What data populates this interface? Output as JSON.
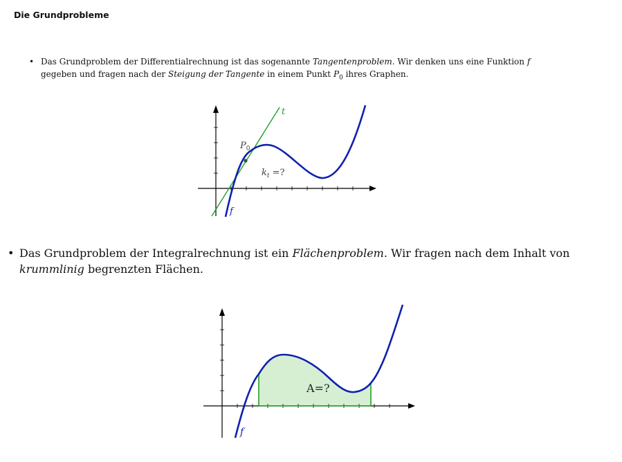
{
  "heading": "Die Grundprobleme",
  "bullet1": {
    "p1": "Das Grundproblem der Differentialrechnung ist das sogenannte ",
    "term1": "Tangentenproblem",
    "p2": ". Wir denken uns eine Funktion ",
    "f": "f",
    "p3": " gegeben und fragen nach der ",
    "term2": "Steigung der Tangente",
    "p4": " in einem Punkt ",
    "p0": "P",
    "p0_sub": "0",
    "p5": " ihres Graphen."
  },
  "bullet2": {
    "p1": "Das Grundproblem der Integralrechnung ist ein ",
    "term1": "Flächenproblem",
    "p2": ". Wir fragen nach dem Inhalt von ",
    "term2": "krummlinig",
    "p3": " begrenzten Flächen."
  },
  "figure1": {
    "tangent_label": "t",
    "point_label": "P",
    "point_sub": "0",
    "slope_label": "k",
    "slope_sub": "t",
    "slope_rest": " =?",
    "function_label": "f",
    "colors": {
      "curve": "#1020b0",
      "tangent": "#22a022",
      "point": "#2a5a3a"
    }
  },
  "figure2": {
    "area_label": "A=?",
    "function_label": "f",
    "colors": {
      "curve": "#1020b0",
      "bounds": "#22a022",
      "fill": "#d6efd3"
    }
  }
}
